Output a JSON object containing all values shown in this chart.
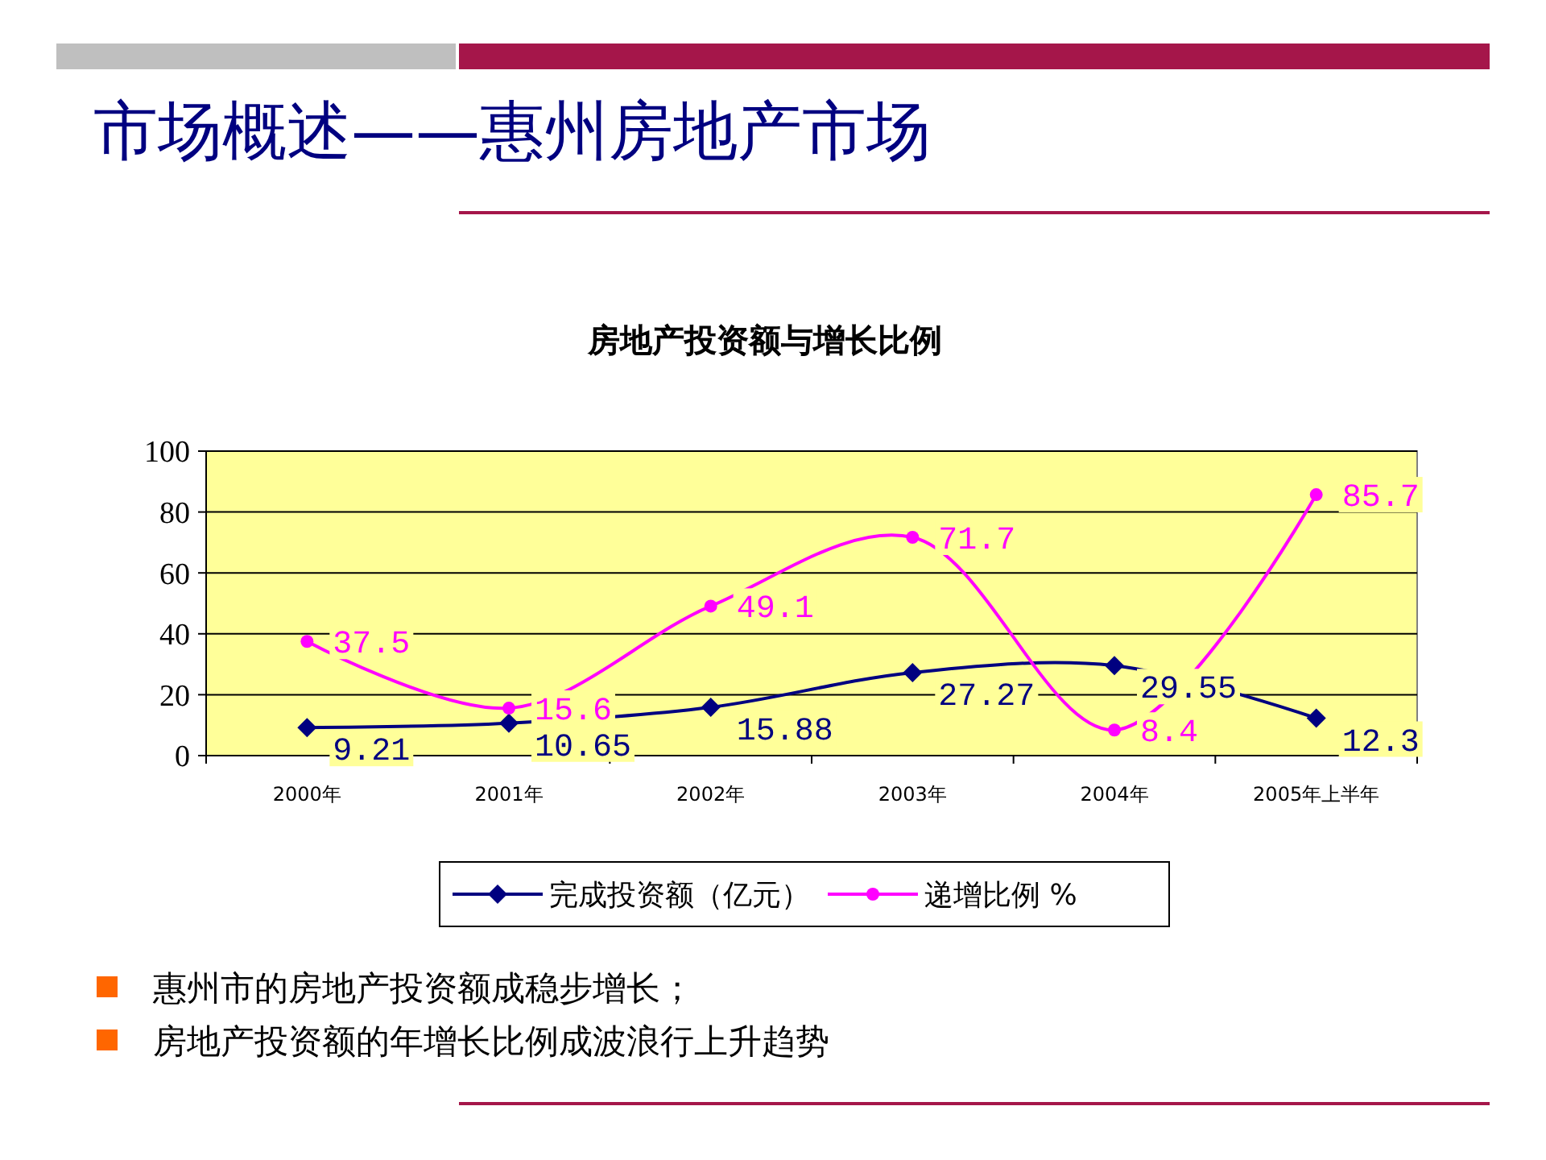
{
  "chart_data": {
    "type": "line",
    "title": "房地产投资额与增长比例",
    "categories": [
      "2000年",
      "2001年",
      "2002年",
      "2003年",
      "2004年",
      "2005年上半年"
    ],
    "series": [
      {
        "name": "完成投资额（亿元）",
        "color": "#000080",
        "marker": "diamond",
        "values": [
          9.21,
          10.65,
          15.88,
          27.27,
          29.55,
          12.3
        ]
      },
      {
        "name": "递增比例 %",
        "color": "#ff00ff",
        "marker": "circle",
        "values": [
          37.5,
          15.6,
          49.1,
          71.7,
          8.4,
          85.7
        ]
      }
    ],
    "ylim": [
      0,
      100
    ],
    "yticks": [
      0,
      20,
      40,
      60,
      80,
      100
    ],
    "grid": "y",
    "legend": "bottom",
    "data_labels": true,
    "annotations": [
      "市场概述——惠州房地产市场",
      "惠州市的房地产投资额成稳步增长；",
      "房地产投资额的年增长比例成波浪行上升趋势"
    ]
  }
}
